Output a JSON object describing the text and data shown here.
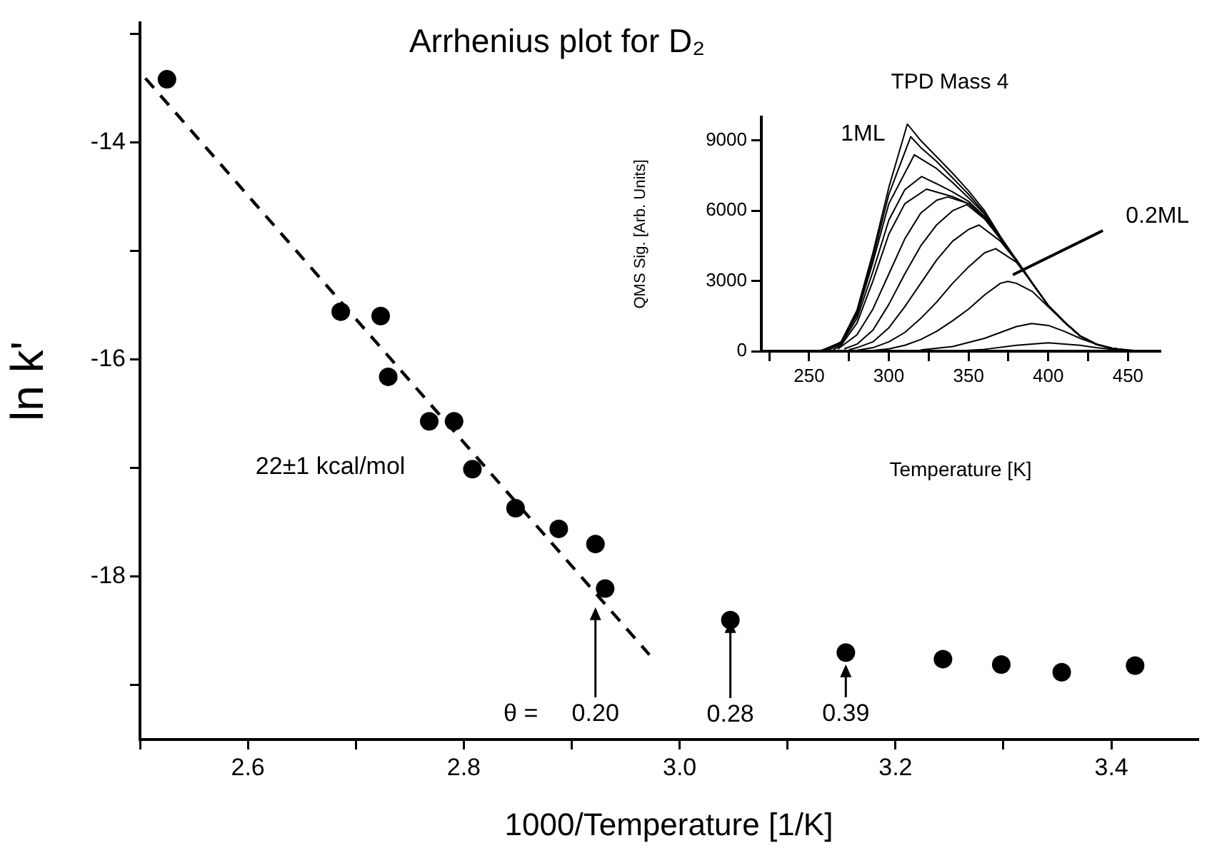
{
  "chart_data": [
    {
      "type": "scatter",
      "title": "Arrhenius plot for D₂",
      "xlabel": "1000/Temperature [1/K]",
      "ylabel": "ln k'",
      "xlim": [
        2.5,
        3.48
      ],
      "ylim": [
        -19.5,
        -12.9
      ],
      "xticks": [
        {
          "value": 2.5,
          "label": null
        },
        2.6,
        {
          "value": 2.7,
          "label": null
        },
        2.8,
        {
          "value": 2.9,
          "label": null
        },
        {
          "value": 3,
          "label": "3.0"
        },
        {
          "value": 3.1,
          "label": null
        },
        3.2,
        {
          "value": 3.3,
          "label": null
        },
        3.4
      ],
      "yticks": [
        {
          "value": -13,
          "label": null
        },
        -14,
        {
          "value": -15,
          "label": null
        },
        -16,
        {
          "value": -17,
          "label": null
        },
        -18,
        {
          "value": -19,
          "label": null
        }
      ],
      "series": [
        {
          "color": "#000000",
          "marker": "circle",
          "x": [
            2.525,
            2.686,
            2.723,
            2.73,
            2.768,
            2.791,
            2.808,
            2.848,
            2.888,
            2.922,
            2.931,
            3.047,
            3.154,
            3.244,
            3.298,
            3.354,
            3.422
          ],
          "values": [
            -13.42,
            -15.56,
            -15.6,
            -16.16,
            -16.57,
            -16.57,
            -17.01,
            -17.37,
            -17.56,
            -17.7,
            -18.11,
            -18.4,
            -18.7,
            -18.76,
            -18.81,
            -18.88,
            -18.82
          ]
        },
        {
          "type": "line",
          "color": "#000000",
          "marker": "none",
          "line_style": "dashed",
          "x": [
            2.505,
            2.972
          ],
          "values": [
            -13.41,
            -18.72
          ]
        }
      ],
      "annotations": [
        "22±1 kcal/mol",
        "θ =",
        "0.20",
        {
          "text": "0.28",
          "x": 3.047,
          "y": -18.4
        },
        "0.39"
      ],
      "legend": false
    },
    {
      "type": "line",
      "title": "TPD Mass 4",
      "xlabel": "Temperature [K]",
      "ylabel": "QMS Sig. [Arb. Units]",
      "xlim": [
        220,
        470
      ],
      "ylim": [
        0,
        10000
      ],
      "xticks": [
        {
          "value": 225,
          "label": null
        },
        250,
        {
          "value": 275,
          "label": null
        },
        300,
        {
          "value": 325,
          "label": null
        },
        350,
        {
          "value": 375,
          "label": null
        },
        400,
        {
          "value": 425,
          "label": null
        },
        450
      ],
      "yticks": [
        0,
        3000,
        6000,
        9000
      ],
      "marker": "none",
      "series": [
        {
          "color": "#000000",
          "x": [
            255,
            260,
            270,
            280,
            290,
            300,
            311.6,
            320,
            330,
            340,
            350,
            360,
            370,
            380,
            390,
            400,
            410,
            420,
            430,
            440,
            450
          ],
          "values": [
            20,
            50,
            400,
            1750,
            4200,
            7000,
            9700,
            9000,
            8300,
            7600,
            6850,
            6000,
            4900,
            3900,
            2900,
            1950,
            1250,
            650,
            300,
            120,
            30
          ]
        },
        {
          "color": "#000000",
          "x": [
            258,
            270,
            280,
            290,
            300,
            313.7,
            320,
            330,
            340,
            350,
            360,
            370,
            380,
            390,
            400,
            410,
            420,
            430,
            440,
            450
          ],
          "values": [
            40,
            380,
            1650,
            4000,
            6700,
            9160,
            8700,
            8100,
            7400,
            6700,
            5900,
            4850,
            3900,
            2900,
            1950,
            1250,
            650,
            300,
            120,
            30
          ]
        },
        {
          "color": "#000000",
          "x": [
            260,
            270,
            280,
            290,
            300,
            316,
            330,
            340,
            350,
            360,
            370,
            380,
            390,
            400,
            410,
            420,
            430,
            440,
            450
          ],
          "values": [
            50,
            350,
            1550,
            3800,
            6300,
            8390,
            7800,
            7200,
            6550,
            5850,
            4800,
            3900,
            2900,
            1950,
            1250,
            650,
            300,
            120,
            30
          ]
        },
        {
          "color": "#000000",
          "x": [
            262,
            270,
            280,
            290,
            300,
            310,
            320.6,
            330,
            340,
            350,
            360,
            370,
            380,
            390,
            400,
            410,
            420,
            430,
            440,
            450
          ],
          "values": [
            50,
            300,
            1400,
            3400,
            5600,
            6900,
            7460,
            7150,
            6800,
            6400,
            5750,
            4800,
            3900,
            2900,
            1950,
            1250,
            650,
            300,
            120,
            30
          ]
        },
        {
          "color": "#000000",
          "x": [
            265,
            270,
            280,
            290,
            300,
            310,
            323.6,
            340,
            350,
            360,
            370,
            380,
            390,
            400,
            410,
            420,
            430,
            440,
            450
          ],
          "values": [
            60,
            250,
            1200,
            3000,
            5000,
            6300,
            6920,
            6600,
            6300,
            5700,
            4800,
            3900,
            2900,
            1950,
            1250,
            650,
            300,
            120,
            30
          ]
        },
        {
          "color": "#000000",
          "x": [
            268,
            280,
            290,
            300,
            310,
            320,
            330,
            337,
            350,
            360,
            370,
            380,
            390,
            400,
            410,
            420,
            430,
            440,
            450
          ],
          "values": [
            90,
            700,
            1800,
            3300,
            4800,
            5900,
            6450,
            6590,
            6300,
            5700,
            4800,
            3900,
            2900,
            1950,
            1250,
            650,
            300,
            120,
            30
          ]
        },
        {
          "color": "#000000",
          "x": [
            272,
            280,
            290,
            300,
            310,
            320,
            330,
            340,
            349,
            360,
            370,
            380,
            390,
            400,
            410,
            420,
            430,
            440,
            450
          ],
          "values": [
            100,
            300,
            900,
            2000,
            3300,
            4500,
            5400,
            6000,
            6260,
            5650,
            4800,
            3900,
            2900,
            1950,
            1250,
            650,
            300,
            120,
            30
          ]
        },
        {
          "color": "#000000",
          "x": [
            275,
            280,
            290,
            300,
            310,
            320,
            330,
            340,
            350,
            356.6,
            370,
            380,
            390,
            400,
            410,
            420,
            430,
            440,
            450
          ],
          "values": [
            60,
            150,
            400,
            1000,
            1900,
            2900,
            3900,
            4700,
            5200,
            5390,
            4700,
            3850,
            2900,
            1950,
            1250,
            650,
            300,
            120,
            30
          ]
        },
        {
          "color": "#000000",
          "x": [
            280,
            290,
            300,
            310,
            320,
            330,
            340,
            350,
            360,
            367,
            380,
            390,
            400,
            410,
            420,
            430,
            440,
            450
          ],
          "values": [
            40,
            150,
            400,
            800,
            1400,
            2100,
            2900,
            3600,
            4200,
            4380,
            3800,
            2900,
            1950,
            1250,
            650,
            300,
            120,
            30
          ]
        },
        {
          "color": "#000000",
          "x": [
            290,
            300,
            310,
            320,
            330,
            340,
            350,
            360,
            370,
            374.6,
            380,
            390,
            400,
            410,
            420,
            430,
            440,
            450
          ],
          "values": [
            30,
            100,
            250,
            500,
            850,
            1300,
            1800,
            2400,
            2900,
            2980,
            2900,
            2550,
            1900,
            1250,
            650,
            300,
            120,
            30
          ]
        },
        {
          "color": "#000000",
          "x": [
            320,
            340,
            360,
            370,
            380,
            389.6,
            400,
            410,
            420,
            430,
            440,
            455
          ],
          "values": [
            50,
            200,
            550,
            800,
            1050,
            1180,
            1100,
            850,
            550,
            300,
            120,
            20
          ]
        },
        {
          "color": "#000000",
          "x": [
            340,
            360,
            380,
            400,
            420,
            430,
            440,
            460
          ],
          "values": [
            0,
            80,
            250,
            360,
            250,
            150,
            80,
            10
          ]
        }
      ],
      "annotations": [
        {
          "text": "1ML",
          "x": 311.6,
          "y": 9700
        },
        {
          "text": "0.2ML",
          "x": 377.8,
          "y": 3260
        }
      ],
      "legend": false
    }
  ]
}
